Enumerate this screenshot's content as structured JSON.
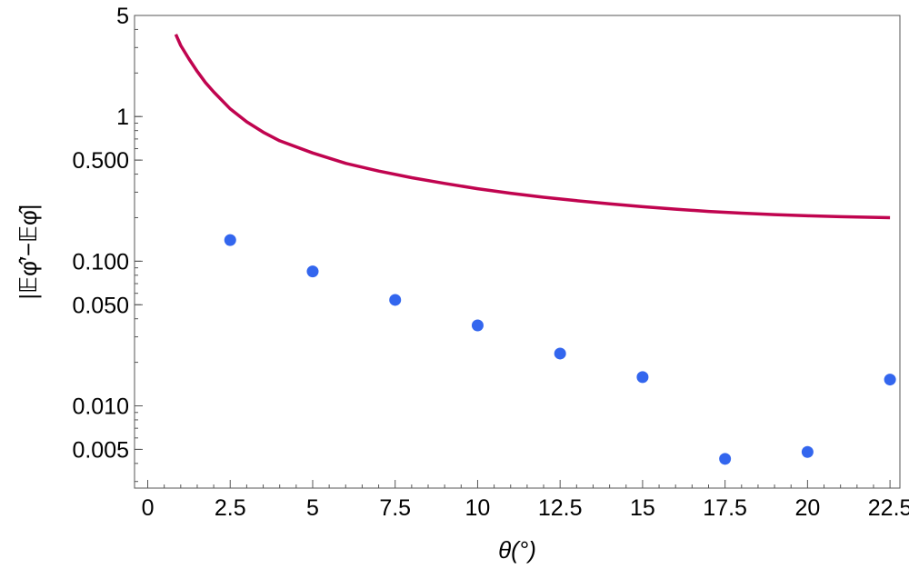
{
  "chart_data": {
    "type": "scatter",
    "xlabel": "θ(°)",
    "ylabel": "|𝔼φ̂′−𝔼φ̂|",
    "xlim": [
      -0.4,
      22.8
    ],
    "ylim": [
      0.0027,
      5
    ],
    "yscale": "log",
    "x_ticks": [
      {
        "value": 0,
        "label": "0"
      },
      {
        "value": 2.5,
        "label": "2.5"
      },
      {
        "value": 5,
        "label": "5"
      },
      {
        "value": 7.5,
        "label": "7.5"
      },
      {
        "value": 10,
        "label": "10"
      },
      {
        "value": 12.5,
        "label": "12.5"
      },
      {
        "value": 15,
        "label": "15"
      },
      {
        "value": 17.5,
        "label": "17.5"
      },
      {
        "value": 20,
        "label": "20"
      },
      {
        "value": 22.5,
        "label": "22.5"
      }
    ],
    "y_ticks": [
      {
        "value": 5,
        "label": "5"
      },
      {
        "value": 1,
        "label": "1"
      },
      {
        "value": 0.5,
        "label": "0.500"
      },
      {
        "value": 0.1,
        "label": "0.100"
      },
      {
        "value": 0.05,
        "label": "0.050"
      },
      {
        "value": 0.01,
        "label": "0.010"
      },
      {
        "value": 0.005,
        "label": "0.005"
      }
    ],
    "grid": false,
    "series": [
      {
        "kind": "line",
        "color": "#c0044f",
        "points": [
          [
            0.85,
            3.7
          ],
          [
            1.0,
            3.1
          ],
          [
            1.25,
            2.5
          ],
          [
            1.5,
            2.05
          ],
          [
            1.75,
            1.72
          ],
          [
            2.0,
            1.48
          ],
          [
            2.5,
            1.13
          ],
          [
            3.0,
            0.92
          ],
          [
            3.5,
            0.78
          ],
          [
            4.0,
            0.68
          ],
          [
            5.0,
            0.56
          ],
          [
            6.0,
            0.475
          ],
          [
            7.0,
            0.42
          ],
          [
            8.0,
            0.378
          ],
          [
            9.0,
            0.345
          ],
          [
            10.0,
            0.317
          ],
          [
            11.0,
            0.295
          ],
          [
            12.0,
            0.277
          ],
          [
            13.0,
            0.262
          ],
          [
            14.0,
            0.249
          ],
          [
            15.0,
            0.238
          ],
          [
            16.0,
            0.229
          ],
          [
            17.0,
            0.221
          ],
          [
            18.0,
            0.215
          ],
          [
            19.0,
            0.21
          ],
          [
            20.0,
            0.206
          ],
          [
            21.0,
            0.203
          ],
          [
            22.0,
            0.201
          ],
          [
            22.5,
            0.2
          ]
        ]
      },
      {
        "kind": "points",
        "color": "#3366ee",
        "points": [
          [
            2.5,
            0.14
          ],
          [
            5,
            0.085
          ],
          [
            7.5,
            0.054
          ],
          [
            10,
            0.036
          ],
          [
            12.5,
            0.023
          ],
          [
            15,
            0.0158
          ],
          [
            17.5,
            0.0043
          ],
          [
            20,
            0.0048
          ],
          [
            22.5,
            0.0152
          ]
        ]
      }
    ]
  }
}
